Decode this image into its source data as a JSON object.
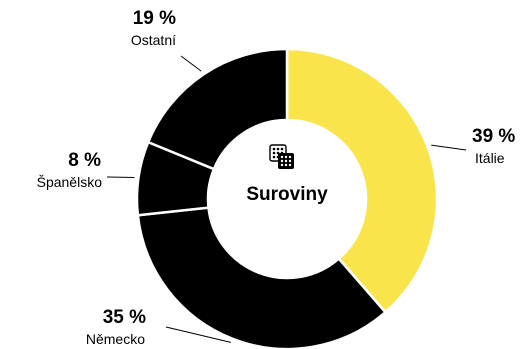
{
  "chart_data": {
    "type": "pie",
    "center_label": "Suroviny",
    "center_icon": "fabric-swatch-icon",
    "slices": [
      {
        "label": "Itálie",
        "value": 39,
        "value_text": "39 %",
        "color": "#f9e54b"
      },
      {
        "label": "Německo",
        "value": 35,
        "value_text": "35 %",
        "color": "#000000"
      },
      {
        "label": "Španělsko",
        "value": 8,
        "value_text": "8 %",
        "color": "#000000"
      },
      {
        "label": "Ostatní",
        "value": 19,
        "value_text": "19 %",
        "color": "#000000"
      }
    ],
    "legend": "none"
  }
}
